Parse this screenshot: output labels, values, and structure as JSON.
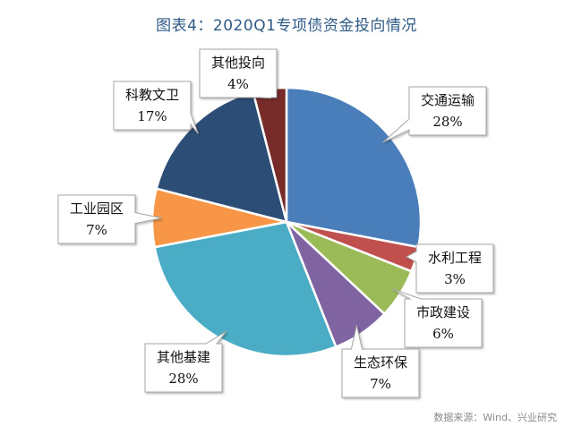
{
  "chart_data": {
    "type": "pie",
    "title": "图表4：2020Q1专项债资金投向情况",
    "source": "数据来源：Wind、兴业研究",
    "categories": [
      "交通运输",
      "水利工程",
      "市政建设",
      "生态环保",
      "其他基建",
      "工业园区",
      "科教文卫",
      "其他投向"
    ],
    "values": [
      28,
      3,
      6,
      7,
      28,
      7,
      17,
      4
    ],
    "value_labels": [
      "28%",
      "3%",
      "6%",
      "7%",
      "28%",
      "7%",
      "17%",
      "4%"
    ],
    "colors": [
      "#4a7ebb",
      "#c0504d",
      "#9bbb59",
      "#8064a2",
      "#4bacc6",
      "#f79646",
      "#2c4d75",
      "#772c2a"
    ],
    "start_angle": "12 o'clock",
    "direction": "clockwise",
    "legend": "none",
    "data_labels": "callouts"
  }
}
